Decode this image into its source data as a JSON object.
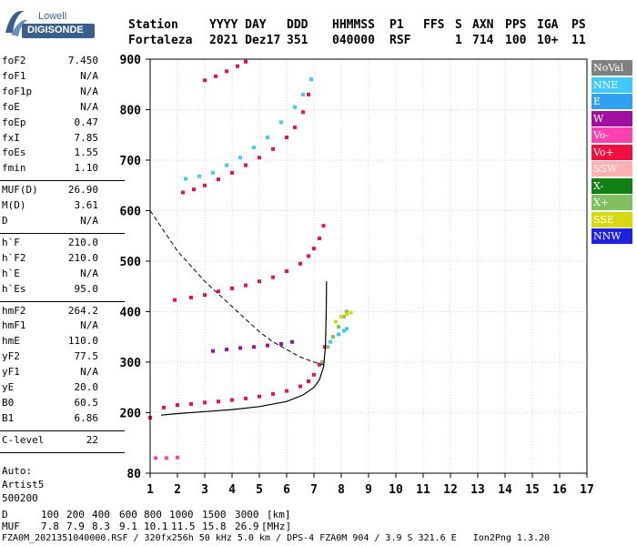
{
  "logo": {
    "line1": "Lowell",
    "line2": "DIGISONDE"
  },
  "header": {
    "row1": [
      "Station",
      "YYYY DAY",
      "DDD",
      "HHMMSS",
      "P1",
      "FFS",
      "S",
      "AXN",
      "PPS",
      "IGA",
      "PS"
    ],
    "row2": [
      "Fortaleza",
      "2021 Dez17",
      "351",
      "040000",
      "RSF",
      "1",
      "714",
      "100",
      "10+",
      "11"
    ]
  },
  "params": {
    "group1": [
      {
        "label": "foF2",
        "value": "7.450"
      },
      {
        "label": "foF1",
        "value": "N/A"
      },
      {
        "label": "foF1p",
        "value": "N/A"
      },
      {
        "label": "foE",
        "value": "N/A"
      },
      {
        "label": "foEp",
        "value": "0.47"
      },
      {
        "label": "fxI",
        "value": "7.85"
      },
      {
        "label": "foEs",
        "value": "1.55"
      },
      {
        "label": "fmin",
        "value": "1.10"
      }
    ],
    "group2": [
      {
        "label": "MUF(D)",
        "value": "26.90"
      },
      {
        "label": "M(D)",
        "value": "3.61"
      },
      {
        "label": "D",
        "value": "N/A"
      }
    ],
    "group3": [
      {
        "label": "h`F",
        "value": "210.0"
      },
      {
        "label": "h`F2",
        "value": "210.0"
      },
      {
        "label": "h`E",
        "value": "N/A"
      },
      {
        "label": "h`Es",
        "value": "95.0"
      }
    ],
    "group4": [
      {
        "label": "hmF2",
        "value": "264.2"
      },
      {
        "label": "hmF1",
        "value": "N/A"
      },
      {
        "label": "hmE",
        "value": "110.0"
      },
      {
        "label": "yF2",
        "value": "77.5"
      },
      {
        "label": "yF1",
        "value": "N/A"
      },
      {
        "label": "yE",
        "value": "20.0"
      },
      {
        "label": "B0",
        "value": "60.5"
      },
      {
        "label": "B1",
        "value": "6.86"
      }
    ],
    "group5": [
      {
        "label": "C-level",
        "value": "22"
      }
    ],
    "auto": [
      "Auto:",
      "Artist5",
      "500200"
    ]
  },
  "footer": {
    "d_label": "D",
    "d_values": [
      "100",
      "200",
      "400",
      "600",
      "800",
      "1000",
      "1500",
      "3000"
    ],
    "d_unit": "[km]",
    "muf_label": "MUF",
    "muf_values": [
      "7.8",
      "7.9",
      "8.3",
      "9.1",
      "10.1",
      "11.5",
      "15.8",
      "26.9"
    ],
    "muf_unit": "[MHz]",
    "file_line": "FZA0M_2021351040000.RSF / 320fx256h 50 kHz 5.0 km / DPS-4 FZA0M 904 / 3.9 S 321.6 E   Ion2Png 1.3.20"
  },
  "legend": [
    {
      "label": "NoVal",
      "color": "#808080"
    },
    {
      "label": "NNE",
      "color": "#40c8ff"
    },
    {
      "label": "E",
      "color": "#30a0f0"
    },
    {
      "label": "W",
      "color": "#a010a0"
    },
    {
      "label": "Vo-",
      "color": "#ff40b0"
    },
    {
      "label": "Vo+",
      "color": "#ee1040"
    },
    {
      "label": "SSW",
      "color": "#ffb0b0"
    },
    {
      "label": "X-",
      "color": "#108010"
    },
    {
      "label": "X+",
      "color": "#80c060"
    },
    {
      "label": "SSE",
      "color": "#d8d810"
    },
    {
      "label": "NNW",
      "color": "#2020e0"
    }
  ],
  "chart_data": {
    "type": "scatter",
    "xlim": [
      1,
      17
    ],
    "ylim": [
      80,
      900
    ],
    "xticks": [
      1,
      2,
      3,
      4,
      5,
      6,
      7,
      8,
      9,
      10,
      11,
      12,
      13,
      14,
      15,
      16,
      17
    ],
    "yticks": [
      80,
      200,
      300,
      400,
      500,
      600,
      700,
      800,
      900
    ],
    "grid": true,
    "traces": [
      {
        "name": "Vo+",
        "color": "#ee1040",
        "points": [
          [
            1.0,
            190
          ],
          [
            1.5,
            210
          ],
          [
            2.0,
            215
          ],
          [
            2.5,
            217
          ],
          [
            3.0,
            220
          ],
          [
            3.5,
            222
          ],
          [
            4.0,
            225
          ],
          [
            4.5,
            228
          ],
          [
            5.0,
            232
          ],
          [
            5.5,
            237
          ],
          [
            6.0,
            243
          ],
          [
            6.5,
            252
          ],
          [
            6.8,
            262
          ],
          [
            7.0,
            275
          ],
          [
            7.2,
            295
          ],
          [
            7.4,
            330
          ]
        ]
      },
      {
        "name": "Vo+",
        "color": "#ee1040",
        "points": [
          [
            1.9,
            423
          ],
          [
            2.5,
            428
          ],
          [
            3.0,
            433
          ],
          [
            3.5,
            440
          ],
          [
            4.0,
            446
          ],
          [
            4.5,
            452
          ],
          [
            5.0,
            460
          ],
          [
            5.5,
            468
          ],
          [
            6.0,
            480
          ],
          [
            6.5,
            495
          ],
          [
            6.8,
            510
          ],
          [
            7.0,
            525
          ],
          [
            7.2,
            545
          ],
          [
            7.35,
            570
          ]
        ]
      },
      {
        "name": "Vo+",
        "color": "#ee1040",
        "points": [
          [
            2.2,
            636
          ],
          [
            2.6,
            642
          ],
          [
            3.0,
            650
          ],
          [
            3.5,
            662
          ],
          [
            4.0,
            675
          ],
          [
            4.5,
            690
          ],
          [
            5.0,
            705
          ],
          [
            5.5,
            722
          ],
          [
            6.0,
            745
          ],
          [
            6.3,
            765
          ],
          [
            6.6,
            795
          ],
          [
            6.8,
            830
          ]
        ]
      },
      {
        "name": "Vo+",
        "color": "#ee1040",
        "points": [
          [
            3.0,
            858
          ],
          [
            3.4,
            866
          ],
          [
            3.8,
            876
          ],
          [
            4.2,
            886
          ],
          [
            4.5,
            895
          ]
        ]
      },
      {
        "name": "NNE",
        "color": "#40c8ff",
        "points": [
          [
            2.3,
            663
          ],
          [
            2.8,
            668
          ],
          [
            3.3,
            675
          ],
          [
            3.8,
            690
          ],
          [
            4.3,
            705
          ],
          [
            4.8,
            725
          ],
          [
            5.3,
            745
          ],
          [
            5.8,
            775
          ],
          [
            6.3,
            805
          ],
          [
            6.6,
            830
          ],
          [
            6.9,
            860
          ]
        ]
      },
      {
        "name": "W",
        "color": "#a010a0",
        "points": [
          [
            3.3,
            322
          ],
          [
            3.8,
            325
          ],
          [
            4.3,
            328
          ],
          [
            4.8,
            330
          ],
          [
            5.3,
            333
          ],
          [
            5.8,
            336
          ],
          [
            6.2,
            340
          ]
        ]
      },
      {
        "name": "Vo-",
        "color": "#ff40b0",
        "points": [
          [
            1.2,
            110
          ],
          [
            1.6,
            110
          ],
          [
            2.0,
            111
          ]
        ]
      },
      {
        "name": "X+",
        "color": "#80c060",
        "points": [
          [
            7.3,
            300
          ],
          [
            7.5,
            330
          ],
          [
            7.7,
            350
          ],
          [
            7.9,
            370
          ],
          [
            8.1,
            390
          ],
          [
            8.2,
            400
          ]
        ]
      },
      {
        "name": "SSE",
        "color": "#d8d810",
        "points": [
          [
            7.8,
            380
          ],
          [
            8.0,
            390
          ],
          [
            8.2,
            395
          ],
          [
            8.35,
            398
          ]
        ]
      },
      {
        "name": "NNE",
        "color": "#40c8ff",
        "points": [
          [
            7.6,
            340
          ],
          [
            7.9,
            355
          ],
          [
            8.1,
            362
          ],
          [
            8.2,
            366
          ]
        ]
      }
    ],
    "profile": {
      "name": "hmF2 profile",
      "points": [
        [
          1.4,
          195
        ],
        [
          2,
          198
        ],
        [
          3,
          202
        ],
        [
          4,
          206
        ],
        [
          5,
          212
        ],
        [
          6,
          222
        ],
        [
          6.6,
          235
        ],
        [
          7.0,
          250
        ],
        [
          7.2,
          265
        ],
        [
          7.35,
          290
        ],
        [
          7.42,
          330
        ],
        [
          7.45,
          400
        ],
        [
          7.46,
          460
        ]
      ]
    },
    "muf_curve": {
      "name": "MUF curve",
      "points": [
        [
          1.0,
          600
        ],
        [
          1.5,
          560
        ],
        [
          2.0,
          520
        ],
        [
          2.5,
          490
        ],
        [
          3.0,
          460
        ],
        [
          3.5,
          435
        ],
        [
          4.0,
          410
        ],
        [
          4.5,
          385
        ],
        [
          5.0,
          360
        ],
        [
          5.5,
          340
        ],
        [
          6.0,
          325
        ],
        [
          6.5,
          310
        ],
        [
          7.0,
          300
        ],
        [
          7.45,
          293
        ]
      ]
    }
  }
}
